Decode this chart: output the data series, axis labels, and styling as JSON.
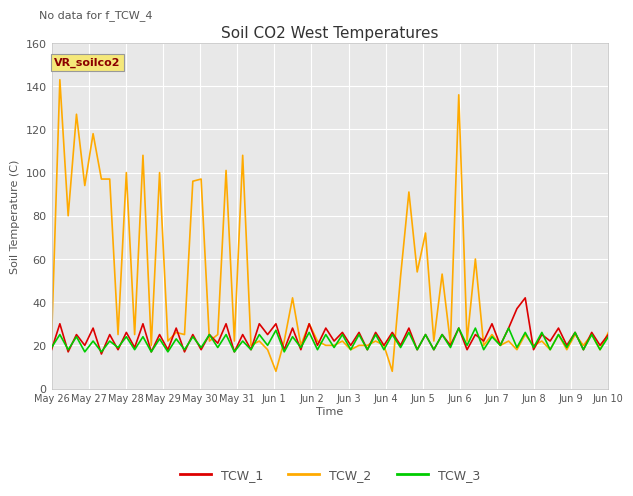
{
  "title": "Soil CO2 West Temperatures",
  "subtitle": "No data for f_TCW_4",
  "ylabel": "Soil Temperature (C)",
  "xlabel": "Time",
  "legend_annotation": "VR_soilco2",
  "ylim": [
    0,
    160
  ],
  "background_color": "#e8e8e8",
  "tcw1_color": "#dd0000",
  "tcw2_color": "#ffaa00",
  "tcw3_color": "#00cc00",
  "tcw1_label": "TCW_1",
  "tcw2_label": "TCW_2",
  "tcw3_label": "TCW_3",
  "x_labels": [
    "May 26",
    "May 27",
    "May 28",
    "May 29",
    "May 30",
    "May 31",
    "Jun 1",
    "Jun 2",
    "Jun 3",
    "Jun 4",
    "Jun 5",
    "Jun 6",
    "Jun 7",
    "Jun 8",
    "Jun 9",
    "Jun 10"
  ],
  "tcw1": [
    18,
    30,
    17,
    25,
    20,
    28,
    16,
    25,
    18,
    26,
    19,
    30,
    17,
    25,
    18,
    28,
    17,
    25,
    18,
    25,
    21,
    30,
    17,
    25,
    18,
    30,
    25,
    30,
    18,
    28,
    18,
    30,
    20,
    28,
    22,
    26,
    20,
    26,
    18,
    26,
    20,
    26,
    20,
    28,
    18,
    25,
    18,
    25,
    20,
    28,
    18,
    25,
    22,
    30,
    20,
    28,
    37,
    42,
    18,
    25,
    22,
    28,
    20,
    26,
    18,
    26,
    20,
    25
  ],
  "tcw2": [
    22,
    143,
    80,
    127,
    94,
    118,
    97,
    97,
    25,
    100,
    25,
    108,
    20,
    100,
    22,
    26,
    25,
    96,
    97,
    22,
    25,
    101,
    22,
    108,
    20,
    22,
    18,
    8,
    22,
    42,
    20,
    30,
    22,
    20,
    20,
    22,
    18,
    20,
    20,
    22,
    20,
    8,
    52,
    91,
    54,
    72,
    22,
    53,
    21,
    136,
    22,
    60,
    20,
    25,
    20,
    22,
    18,
    25,
    20,
    22,
    18,
    25,
    18,
    25,
    20,
    25,
    18,
    26
  ],
  "tcw3": [
    19,
    25,
    18,
    24,
    17,
    22,
    17,
    22,
    19,
    24,
    18,
    24,
    17,
    23,
    17,
    23,
    18,
    24,
    19,
    25,
    19,
    25,
    17,
    22,
    18,
    25,
    20,
    27,
    17,
    24,
    19,
    26,
    18,
    25,
    19,
    25,
    18,
    25,
    18,
    25,
    18,
    25,
    19,
    26,
    18,
    25,
    18,
    25,
    19,
    28,
    20,
    28,
    18,
    24,
    20,
    28,
    19,
    26,
    19,
    26,
    18,
    25,
    19,
    26,
    18,
    25,
    18,
    24
  ]
}
